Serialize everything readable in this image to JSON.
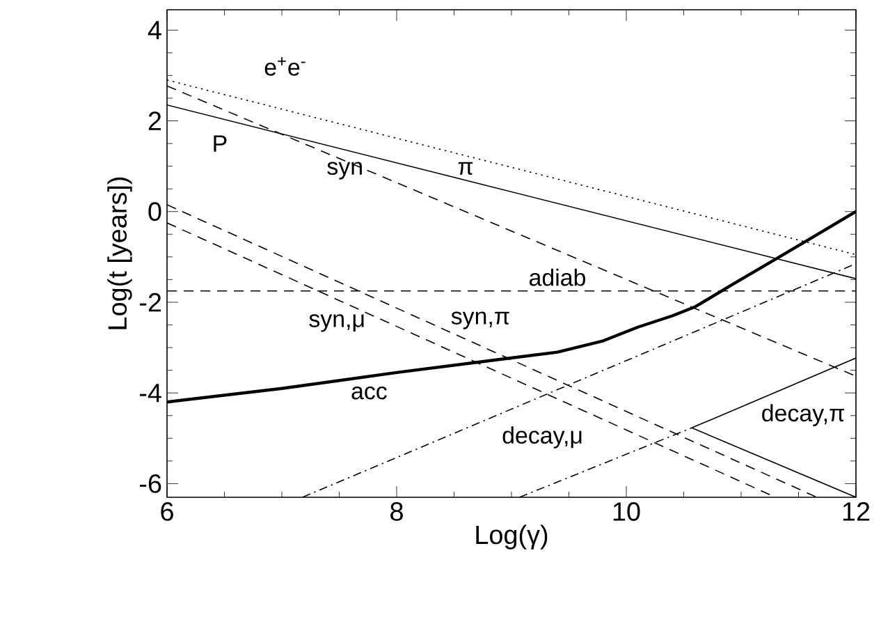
{
  "chart_data": {
    "type": "line",
    "xlabel": "Log(γ)",
    "ylabel": "Log(t [years])",
    "xlim": [
      6,
      12
    ],
    "ylim": [
      -6.3,
      4.45
    ],
    "xticks": [
      6,
      8,
      10,
      12
    ],
    "yticks": [
      -6,
      -4,
      -2,
      0,
      2,
      4
    ],
    "grid": false,
    "marker": "none",
    "series": [
      {
        "color": "#000000",
        "line_style": "dotted",
        "x": [
          6,
          12
        ],
        "values": [
          2.9,
          -0.95
        ]
      },
      {
        "color": "#000000",
        "line_style": "solid",
        "x": [
          6,
          12
        ],
        "values": [
          2.35,
          -1.48
        ]
      },
      {
        "color": "#000000",
        "line_style": "dashed",
        "x": [
          6,
          12
        ],
        "values": [
          2.77,
          -3.63
        ]
      },
      {
        "color": "#000000",
        "line_style": "dashed",
        "x": [
          6,
          12
        ],
        "values": [
          -1.75,
          -1.75
        ]
      },
      {
        "color": "#000000",
        "line_style": "dashed",
        "x": [
          6,
          11.66
        ],
        "values": [
          0.15,
          -6.3
        ]
      },
      {
        "color": "#000000",
        "line_style": "dashed",
        "x": [
          6,
          11.3
        ],
        "values": [
          -0.25,
          -6.3
        ]
      },
      {
        "color": "#000000",
        "line_style": "solid",
        "x": [
          10.57,
          12
        ],
        "values": [
          -4.77,
          -6.3
        ]
      },
      {
        "color": "#000000",
        "line_style": "dashdot",
        "x": [
          7.18,
          12
        ],
        "values": [
          -6.3,
          -1.15
        ]
      },
      {
        "color": "#000000",
        "line_style": "dashdot",
        "x": [
          9.07,
          10.57
        ],
        "values": [
          -6.3,
          -4.77
        ]
      },
      {
        "color": "#000000",
        "line_style": "solid",
        "x": [
          10.57,
          12
        ],
        "values": [
          -4.77,
          -3.23
        ]
      },
      {
        "color": "#000000",
        "line_style": "solid",
        "x": [
          6,
          7,
          8,
          8.9,
          9.4,
          9.8,
          10.1,
          10.4,
          10.6,
          10.93,
          11.3,
          11.6,
          12
        ],
        "values": [
          -4.2,
          -3.9,
          -3.55,
          -3.26,
          -3.1,
          -2.85,
          -2.55,
          -2.3,
          -2.1,
          -1.6,
          -1.05,
          -0.6,
          0.0
        ]
      }
    ],
    "annotations": [
      "e$^{+}$e$^{-}$",
      "P",
      "syn",
      "π",
      "adiab",
      "syn,μ",
      "syn,π",
      "acc",
      "decay,μ",
      "decay,π"
    ]
  }
}
